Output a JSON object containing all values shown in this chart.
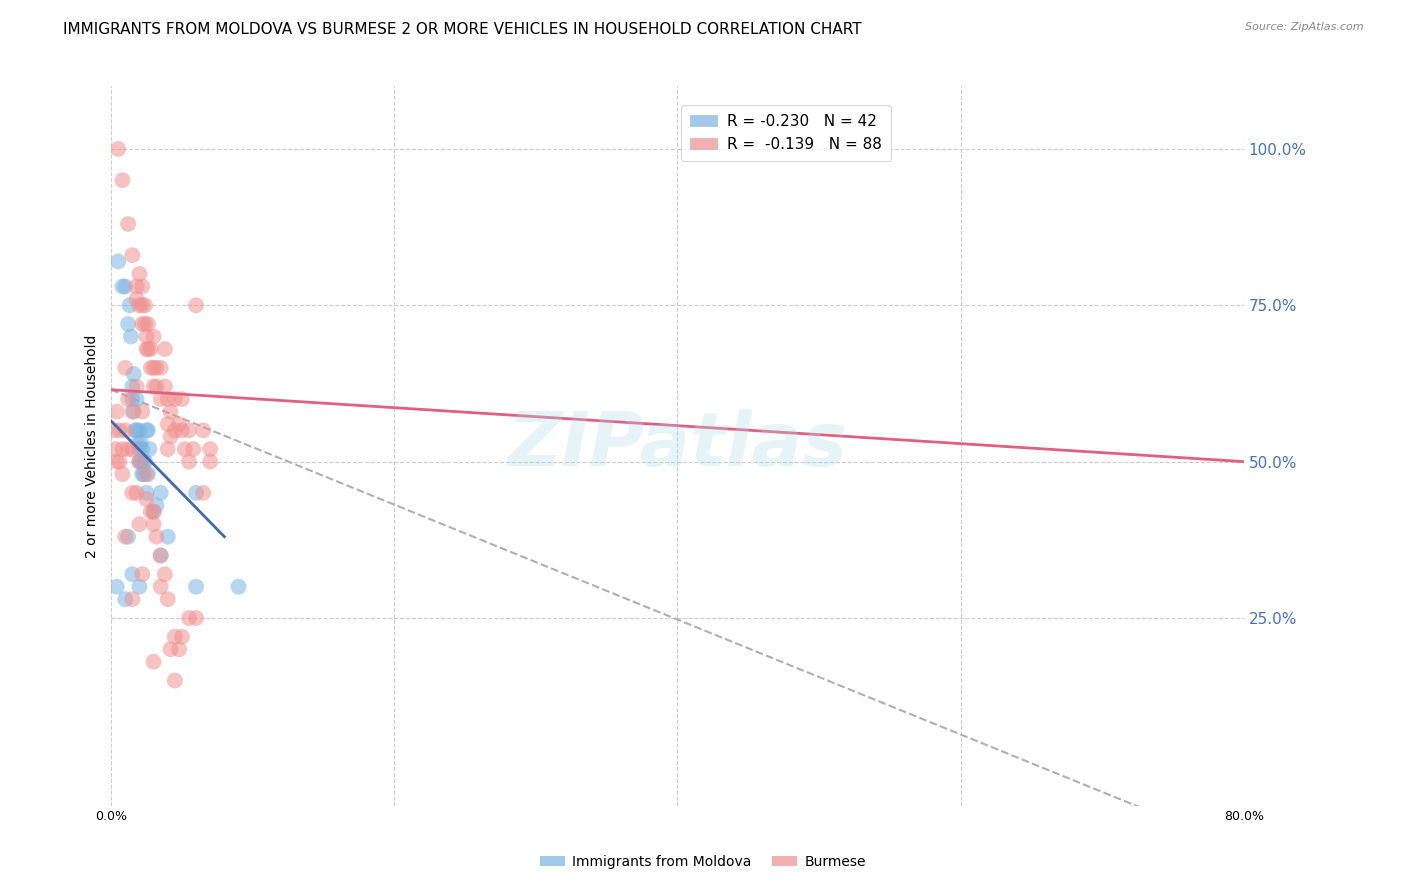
{
  "title": "IMMIGRANTS FROM MOLDOVA VS BURMESE 2 OR MORE VEHICLES IN HOUSEHOLD CORRELATION CHART",
  "source": "Source: ZipAtlas.com",
  "ylabel": "2 or more Vehicles in Household",
  "ytick_labels": [
    "100.0%",
    "75.0%",
    "50.0%",
    "25.0%"
  ],
  "ytick_values": [
    1.0,
    0.75,
    0.5,
    0.25
  ],
  "xtick_labels": [
    "0.0%",
    "",
    "",
    "",
    "80.0%"
  ],
  "xtick_values": [
    0.0,
    0.2,
    0.4,
    0.6,
    0.8
  ],
  "xlim": [
    0.0,
    0.8
  ],
  "ylim": [
    -0.05,
    1.1
  ],
  "watermark": "ZIPatlas",
  "moldova_scatter": [
    [
      0.005,
      0.82
    ],
    [
      0.008,
      0.78
    ],
    [
      0.01,
      0.78
    ],
    [
      0.012,
      0.72
    ],
    [
      0.013,
      0.75
    ],
    [
      0.014,
      0.7
    ],
    [
      0.015,
      0.62
    ],
    [
      0.015,
      0.6
    ],
    [
      0.016,
      0.64
    ],
    [
      0.016,
      0.58
    ],
    [
      0.017,
      0.55
    ],
    [
      0.018,
      0.6
    ],
    [
      0.018,
      0.55
    ],
    [
      0.019,
      0.53
    ],
    [
      0.02,
      0.55
    ],
    [
      0.02,
      0.52
    ],
    [
      0.02,
      0.5
    ],
    [
      0.021,
      0.53
    ],
    [
      0.021,
      0.5
    ],
    [
      0.022,
      0.52
    ],
    [
      0.022,
      0.48
    ],
    [
      0.023,
      0.5
    ],
    [
      0.023,
      0.48
    ],
    [
      0.024,
      0.5
    ],
    [
      0.025,
      0.55
    ],
    [
      0.025,
      0.45
    ],
    [
      0.026,
      0.55
    ],
    [
      0.026,
      0.48
    ],
    [
      0.027,
      0.52
    ],
    [
      0.03,
      0.42
    ],
    [
      0.032,
      0.43
    ],
    [
      0.035,
      0.45
    ],
    [
      0.035,
      0.35
    ],
    [
      0.04,
      0.38
    ],
    [
      0.012,
      0.38
    ],
    [
      0.015,
      0.32
    ],
    [
      0.02,
      0.3
    ],
    [
      0.004,
      0.3
    ],
    [
      0.01,
      0.28
    ],
    [
      0.06,
      0.3
    ],
    [
      0.06,
      0.45
    ],
    [
      0.09,
      0.3
    ]
  ],
  "burmese_scatter": [
    [
      0.005,
      1.0
    ],
    [
      0.008,
      0.95
    ],
    [
      0.012,
      0.88
    ],
    [
      0.015,
      0.83
    ],
    [
      0.018,
      0.78
    ],
    [
      0.018,
      0.76
    ],
    [
      0.02,
      0.8
    ],
    [
      0.02,
      0.75
    ],
    [
      0.022,
      0.78
    ],
    [
      0.022,
      0.75
    ],
    [
      0.022,
      0.72
    ],
    [
      0.024,
      0.75
    ],
    [
      0.024,
      0.72
    ],
    [
      0.025,
      0.7
    ],
    [
      0.025,
      0.68
    ],
    [
      0.026,
      0.72
    ],
    [
      0.026,
      0.68
    ],
    [
      0.028,
      0.68
    ],
    [
      0.028,
      0.65
    ],
    [
      0.03,
      0.7
    ],
    [
      0.03,
      0.65
    ],
    [
      0.03,
      0.62
    ],
    [
      0.032,
      0.65
    ],
    [
      0.032,
      0.62
    ],
    [
      0.035,
      0.65
    ],
    [
      0.035,
      0.6
    ],
    [
      0.038,
      0.68
    ],
    [
      0.038,
      0.62
    ],
    [
      0.04,
      0.6
    ],
    [
      0.04,
      0.56
    ],
    [
      0.042,
      0.58
    ],
    [
      0.042,
      0.54
    ],
    [
      0.045,
      0.6
    ],
    [
      0.045,
      0.55
    ],
    [
      0.048,
      0.56
    ],
    [
      0.05,
      0.6
    ],
    [
      0.05,
      0.55
    ],
    [
      0.052,
      0.52
    ],
    [
      0.055,
      0.55
    ],
    [
      0.055,
      0.5
    ],
    [
      0.058,
      0.52
    ],
    [
      0.06,
      0.75
    ],
    [
      0.065,
      0.55
    ],
    [
      0.07,
      0.5
    ],
    [
      0.07,
      0.52
    ],
    [
      0.015,
      0.52
    ],
    [
      0.02,
      0.5
    ],
    [
      0.025,
      0.48
    ],
    [
      0.025,
      0.44
    ],
    [
      0.03,
      0.42
    ],
    [
      0.03,
      0.4
    ],
    [
      0.032,
      0.38
    ],
    [
      0.035,
      0.35
    ],
    [
      0.038,
      0.32
    ],
    [
      0.04,
      0.28
    ],
    [
      0.042,
      0.2
    ],
    [
      0.045,
      0.22
    ],
    [
      0.048,
      0.2
    ],
    [
      0.05,
      0.22
    ],
    [
      0.055,
      0.25
    ],
    [
      0.06,
      0.25
    ],
    [
      0.065,
      0.45
    ],
    [
      0.022,
      0.58
    ],
    [
      0.018,
      0.62
    ],
    [
      0.015,
      0.58
    ],
    [
      0.012,
      0.6
    ],
    [
      0.01,
      0.65
    ],
    [
      0.01,
      0.55
    ],
    [
      0.012,
      0.52
    ],
    [
      0.015,
      0.45
    ],
    [
      0.018,
      0.45
    ],
    [
      0.02,
      0.4
    ],
    [
      0.008,
      0.52
    ],
    [
      0.008,
      0.48
    ],
    [
      0.006,
      0.55
    ],
    [
      0.006,
      0.5
    ],
    [
      0.004,
      0.58
    ],
    [
      0.004,
      0.5
    ],
    [
      0.003,
      0.52
    ],
    [
      0.002,
      0.55
    ],
    [
      0.035,
      0.3
    ],
    [
      0.04,
      0.52
    ],
    [
      0.045,
      0.15
    ],
    [
      0.03,
      0.18
    ],
    [
      0.015,
      0.28
    ],
    [
      0.01,
      0.38
    ],
    [
      0.022,
      0.32
    ],
    [
      0.028,
      0.42
    ]
  ],
  "moldova_trendline": {
    "x": [
      0.0,
      0.08
    ],
    "y": [
      0.565,
      0.38
    ]
  },
  "burmese_trendline": {
    "x": [
      0.0,
      0.8
    ],
    "y": [
      0.615,
      0.5
    ]
  },
  "moldova_color": "#7ab3e0",
  "burmese_color": "#f09090",
  "moldova_trend_color": "#4169b0",
  "burmese_trend_color": "#e06080",
  "dashed_line": {
    "x": [
      0.0,
      0.8
    ],
    "y": [
      0.615,
      -0.12
    ]
  },
  "background_color": "#ffffff",
  "grid_color": "#cccccc",
  "right_axis_label_color": "#4472c4",
  "title_fontsize": 11,
  "axis_label_fontsize": 10,
  "tick_fontsize": 9
}
